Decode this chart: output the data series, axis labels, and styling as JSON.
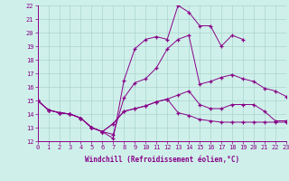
{
  "xlabel": "Windchill (Refroidissement éolien,°C)",
  "bg_color": "#cff0ea",
  "line_color": "#880088",
  "grid_color": "#aad4cc",
  "xmin": 0,
  "xmax": 23,
  "ymin": 12,
  "ymax": 22,
  "yticks": [
    12,
    13,
    14,
    15,
    16,
    17,
    18,
    19,
    20,
    21,
    22
  ],
  "xticks": [
    0,
    1,
    2,
    3,
    4,
    5,
    6,
    7,
    8,
    9,
    10,
    11,
    12,
    13,
    14,
    15,
    16,
    17,
    18,
    19,
    20,
    21,
    22,
    23
  ],
  "curve1_x": [
    0,
    1,
    2,
    3,
    4,
    5,
    6,
    7,
    8,
    9,
    10,
    11,
    12,
    13,
    14,
    15,
    16,
    17,
    18,
    19
  ],
  "curve1_y": [
    15.0,
    14.3,
    14.1,
    14.0,
    13.7,
    13.0,
    12.7,
    12.2,
    16.5,
    18.8,
    19.5,
    19.7,
    19.5,
    22.0,
    21.5,
    20.5,
    20.5,
    19.0,
    19.8,
    19.5
  ],
  "curve2_x": [
    0,
    1,
    2,
    3,
    4,
    5,
    6,
    7,
    8,
    9,
    10,
    11,
    12,
    13,
    14,
    15,
    16,
    17,
    18,
    19,
    20,
    21,
    22,
    23
  ],
  "curve2_y": [
    15.0,
    14.3,
    14.1,
    14.0,
    13.7,
    13.0,
    12.7,
    12.5,
    15.2,
    16.3,
    16.6,
    17.4,
    18.8,
    19.5,
    19.8,
    16.2,
    16.4,
    16.7,
    16.9,
    16.6,
    16.4,
    15.9,
    15.7,
    15.3
  ],
  "curve3_x": [
    0,
    1,
    2,
    3,
    4,
    5,
    6,
    7,
    8,
    9,
    10,
    11,
    12,
    13,
    14,
    15,
    16,
    17,
    18,
    19,
    20,
    21,
    22,
    23
  ],
  "curve3_y": [
    15.0,
    14.3,
    14.1,
    14.0,
    13.7,
    13.0,
    12.7,
    13.3,
    14.2,
    14.4,
    14.6,
    14.9,
    15.1,
    15.4,
    15.7,
    14.7,
    14.4,
    14.4,
    14.7,
    14.7,
    14.7,
    14.2,
    13.5,
    13.5
  ],
  "curve4_x": [
    0,
    1,
    2,
    3,
    4,
    5,
    6,
    7,
    8,
    9,
    10,
    11,
    12,
    13,
    14,
    15,
    16,
    17,
    18,
    19,
    20,
    21,
    22,
    23
  ],
  "curve4_y": [
    15.0,
    14.3,
    14.1,
    14.0,
    13.7,
    13.0,
    12.7,
    13.3,
    14.2,
    14.4,
    14.6,
    14.9,
    15.1,
    14.1,
    13.9,
    13.6,
    13.5,
    13.4,
    13.4,
    13.4,
    13.4,
    13.4,
    13.4,
    13.4
  ]
}
